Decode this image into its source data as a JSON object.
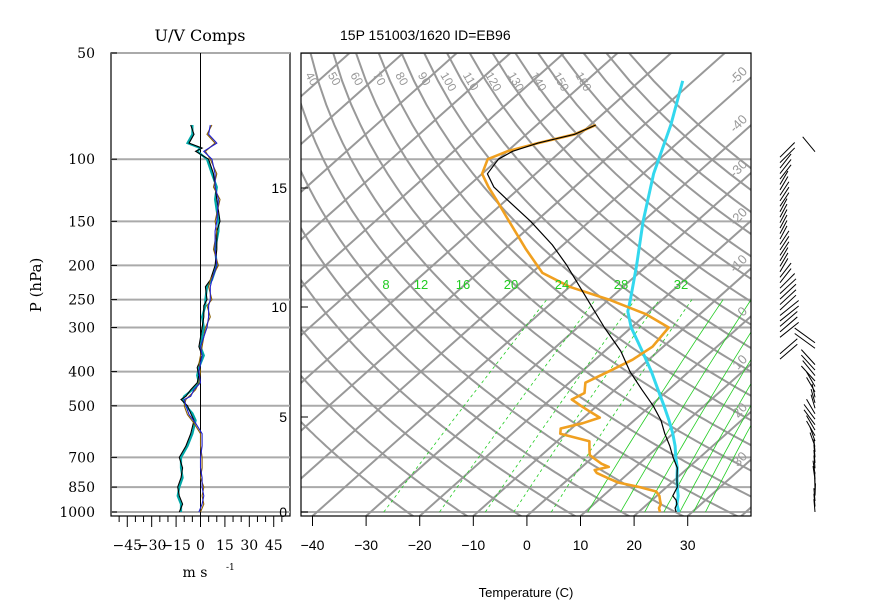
{
  "header": {
    "uv_title": "U/V Comps",
    "sounding_title": "15P 151003/1620 ID=EB96"
  },
  "chart_data": [
    {
      "type": "line",
      "title": "U/V Comps",
      "xlabel": "m  s",
      "xlabel_exponent": "-1",
      "ylabel": "P (hPa)",
      "y_scale": "log",
      "ylim": [
        1000,
        50
      ],
      "xlim": [
        -55,
        55
      ],
      "x_ticks": [
        -45,
        -30,
        -15,
        0,
        15,
        30,
        45
      ],
      "x_tick_labels": [
        "−45",
        "−30",
        "−15",
        "0",
        "15",
        "30",
        "45"
      ],
      "y_ticks": [
        50,
        100,
        150,
        200,
        250,
        300,
        400,
        500,
        700,
        850,
        1000
      ],
      "grid": true,
      "series": [
        {
          "color": "#00a8a8",
          "points": [
            [
              1000,
              -12
            ],
            [
              950,
              -12
            ],
            [
              900,
              -14
            ],
            [
              850,
              -13
            ],
            [
              800,
              -11
            ],
            [
              750,
              -12
            ],
            [
              700,
              -12
            ],
            [
              650,
              -8
            ],
            [
              600,
              -5
            ],
            [
              550,
              -3
            ],
            [
              525,
              -5
            ],
            [
              500,
              -9
            ],
            [
              480,
              -11
            ],
            [
              470,
              -10
            ],
            [
              450,
              -5
            ],
            [
              430,
              -1
            ],
            [
              410,
              -2
            ],
            [
              390,
              -1
            ],
            [
              360,
              2
            ],
            [
              340,
              0
            ],
            [
              320,
              1
            ],
            [
              300,
              2
            ],
            [
              280,
              1
            ],
            [
              260,
              3
            ],
            [
              250,
              3
            ],
            [
              230,
              4
            ],
            [
              220,
              7
            ],
            [
              200,
              10
            ],
            [
              180,
              9
            ],
            [
              160,
              11
            ],
            [
              150,
              11
            ],
            [
              130,
              9
            ],
            [
              120,
              10
            ],
            [
              110,
              7
            ],
            [
              100,
              4
            ],
            [
              95,
              -2
            ],
            [
              93,
              0
            ],
            [
              90,
              -8
            ],
            [
              85,
              -5
            ],
            [
              80,
              -5
            ]
          ]
        },
        {
          "color": "#000000",
          "points": [
            [
              1000,
              -13
            ],
            [
              950,
              -11
            ],
            [
              900,
              -13
            ],
            [
              850,
              -14
            ],
            [
              800,
              -12
            ],
            [
              750,
              -11
            ],
            [
              700,
              -13
            ],
            [
              650,
              -9
            ],
            [
              600,
              -6
            ],
            [
              550,
              -4
            ],
            [
              525,
              -6
            ],
            [
              500,
              -8
            ],
            [
              480,
              -12
            ],
            [
              470,
              -9
            ],
            [
              450,
              -6
            ],
            [
              430,
              -2
            ],
            [
              410,
              -1
            ],
            [
              390,
              -2
            ],
            [
              360,
              1
            ],
            [
              340,
              -1
            ],
            [
              320,
              0
            ],
            [
              300,
              1
            ],
            [
              280,
              2
            ],
            [
              260,
              2
            ],
            [
              250,
              4
            ],
            [
              230,
              3
            ],
            [
              220,
              6
            ],
            [
              200,
              9
            ],
            [
              180,
              10
            ],
            [
              160,
              10
            ],
            [
              150,
              12
            ],
            [
              130,
              10
            ],
            [
              120,
              9
            ],
            [
              110,
              8
            ],
            [
              100,
              5
            ],
            [
              95,
              -3
            ],
            [
              93,
              1
            ],
            [
              90,
              -7
            ],
            [
              85,
              -4
            ],
            [
              80,
              -6
            ]
          ]
        },
        {
          "color": "#8a6000",
          "points": [
            [
              1000,
              0
            ],
            [
              950,
              2
            ],
            [
              900,
              1
            ],
            [
              850,
              2
            ],
            [
              800,
              0
            ],
            [
              750,
              1
            ],
            [
              700,
              1
            ],
            [
              650,
              0
            ],
            [
              600,
              0
            ],
            [
              560,
              -4
            ],
            [
              530,
              -8
            ],
            [
              500,
              -10
            ],
            [
              480,
              -9
            ],
            [
              470,
              -7
            ],
            [
              450,
              -3
            ],
            [
              430,
              -1
            ],
            [
              400,
              0
            ],
            [
              380,
              -1
            ],
            [
              360,
              0
            ],
            [
              340,
              1
            ],
            [
              300,
              3
            ],
            [
              280,
              6
            ],
            [
              260,
              4
            ],
            [
              250,
              7
            ],
            [
              230,
              5
            ],
            [
              220,
              6
            ],
            [
              200,
              11
            ],
            [
              180,
              8
            ],
            [
              160,
              10
            ],
            [
              150,
              9
            ],
            [
              130,
              12
            ],
            [
              120,
              8
            ],
            [
              110,
              10
            ],
            [
              100,
              6
            ],
            [
              95,
              3
            ],
            [
              90,
              9
            ],
            [
              85,
              4
            ],
            [
              80,
              7
            ]
          ]
        },
        {
          "color": "#2020d0",
          "points": [
            [
              1000,
              -1
            ],
            [
              950,
              1
            ],
            [
              900,
              2
            ],
            [
              850,
              1
            ],
            [
              800,
              1
            ],
            [
              750,
              0
            ],
            [
              700,
              0
            ],
            [
              650,
              1
            ],
            [
              600,
              1
            ],
            [
              560,
              -3
            ],
            [
              530,
              -7
            ],
            [
              500,
              -9
            ],
            [
              480,
              -10
            ],
            [
              470,
              -6
            ],
            [
              450,
              -4
            ],
            [
              430,
              0
            ],
            [
              400,
              -1
            ],
            [
              380,
              0
            ],
            [
              360,
              1
            ],
            [
              340,
              0
            ],
            [
              300,
              4
            ],
            [
              280,
              5
            ],
            [
              260,
              5
            ],
            [
              250,
              6
            ],
            [
              230,
              6
            ],
            [
              220,
              7
            ],
            [
              200,
              10
            ],
            [
              180,
              9
            ],
            [
              160,
              9
            ],
            [
              150,
              10
            ],
            [
              130,
              11
            ],
            [
              120,
              9
            ],
            [
              110,
              9
            ],
            [
              100,
              7
            ],
            [
              95,
              2
            ],
            [
              90,
              10
            ],
            [
              85,
              5
            ],
            [
              80,
              6
            ]
          ]
        }
      ]
    },
    {
      "type": "line",
      "subtype": "skew-t",
      "title": "15P 151003/1620 ID=EB96",
      "xlabel": "Temperature (C)",
      "xlim": [
        -43,
        42
      ],
      "ylim": [
        1000,
        50
      ],
      "x_ticks": [
        -40,
        -30,
        -20,
        -10,
        0,
        10,
        20,
        30
      ],
      "x_tick_labels": [
        "−40",
        "−30",
        "−20",
        "−10",
        "0",
        "10",
        "20",
        "30"
      ],
      "height_ticks_km": [
        0,
        5,
        10,
        15
      ],
      "height_tick_labels": [
        "0",
        "5",
        "10",
        "15"
      ],
      "mixing_ratio_labels": [
        "8",
        "12",
        "16",
        "20",
        "24",
        "28",
        "32"
      ],
      "dry_adiabat_labels": [
        "40",
        "50",
        "60",
        "70",
        "80",
        "90",
        "100",
        "110",
        "120",
        "130",
        "140",
        "150",
        "160"
      ],
      "isotherm_labels": [
        "-50",
        "-40",
        "-30",
        "-20",
        "-10",
        "0",
        "10",
        "20",
        "30"
      ],
      "colors": {
        "temperature": "#000000",
        "dewpoint": "#f0a020",
        "parcel": "#33d8ee",
        "isobar": "#aaaaaa",
        "isotherm": "#999999",
        "mixing_ratio": "#22cc22"
      },
      "series": [
        {
          "points": [
            [
              1000,
              27
            ],
            [
              975,
              26
            ],
            [
              950,
              25.5
            ],
            [
              925,
              24.5
            ],
            [
              900,
              23
            ],
            [
              875,
              22.5
            ],
            [
              850,
              22
            ],
            [
              825,
              21
            ],
            [
              800,
              20
            ],
            [
              775,
              19
            ],
            [
              750,
              18
            ],
            [
              700,
              15
            ],
            [
              650,
              12
            ],
            [
              600,
              8.5
            ],
            [
              550,
              5
            ],
            [
              500,
              0.5
            ],
            [
              450,
              -5
            ],
            [
              400,
              -11
            ],
            [
              350,
              -17
            ],
            [
              300,
              -25
            ],
            [
              250,
              -34
            ],
            [
              200,
              -45
            ],
            [
              175,
              -52
            ],
            [
              150,
              -61
            ],
            [
              130,
              -70
            ],
            [
              120,
              -75
            ],
            [
              110,
              -79
            ],
            [
              100,
              -80
            ],
            [
              95,
              -79
            ],
            [
              90,
              -76
            ],
            [
              85,
              -71
            ],
            [
              80,
              -69
            ]
          ]
        },
        {
          "points": [
            [
              1000,
              24
            ],
            [
              975,
              23
            ],
            [
              950,
              22.5
            ],
            [
              925,
              21.5
            ],
            [
              900,
              20.5
            ],
            [
              875,
              19
            ],
            [
              850,
              15
            ],
            [
              825,
              10
            ],
            [
              800,
              7
            ],
            [
              775,
              4
            ],
            [
              760,
              3
            ],
            [
              745,
              5
            ],
            [
              730,
              3
            ],
            [
              710,
              1
            ],
            [
              690,
              -1
            ],
            [
              670,
              -2
            ],
            [
              650,
              -3
            ],
            [
              630,
              -4
            ],
            [
              600,
              -11
            ],
            [
              580,
              -12
            ],
            [
              560,
              -9
            ],
            [
              540,
              -7
            ],
            [
              520,
              -10
            ],
            [
              500,
              -13
            ],
            [
              480,
              -16
            ],
            [
              460,
              -15
            ],
            [
              430,
              -17
            ],
            [
              400,
              -15
            ],
            [
              370,
              -13
            ],
            [
              340,
              -12
            ],
            [
              300,
              -13
            ],
            [
              275,
              -20
            ],
            [
              250,
              -30
            ],
            [
              230,
              -40
            ],
            [
              210,
              -48
            ],
            [
              180,
              -56
            ],
            [
              150,
              -65
            ],
            [
              130,
              -72
            ],
            [
              120,
              -76
            ],
            [
              110,
              -80
            ],
            [
              100,
              -82
            ],
            [
              95,
              -80
            ],
            [
              90,
              -76
            ],
            [
              85,
              -71
            ],
            [
              80,
              -69
            ]
          ]
        },
        {
          "points": [
            [
              1000,
              27.5
            ],
            [
              950,
              25.5
            ],
            [
              900,
              24
            ],
            [
              850,
              22
            ],
            [
              800,
              20
            ],
            [
              750,
              18
            ],
            [
              700,
              15.5
            ],
            [
              650,
              13
            ],
            [
              600,
              10
            ],
            [
              550,
              6.5
            ],
            [
              500,
              2.5
            ],
            [
              450,
              -2
            ],
            [
              400,
              -7
            ],
            [
              350,
              -13
            ],
            [
              300,
              -20
            ],
            [
              270,
              -24
            ],
            [
              270,
              -24
            ],
            [
              250,
              -26
            ],
            [
              200,
              -32
            ],
            [
              150,
              -40
            ],
            [
              110,
              -48
            ],
            [
              80,
              -55
            ],
            [
              60,
              -62
            ]
          ]
        }
      ]
    }
  ]
}
